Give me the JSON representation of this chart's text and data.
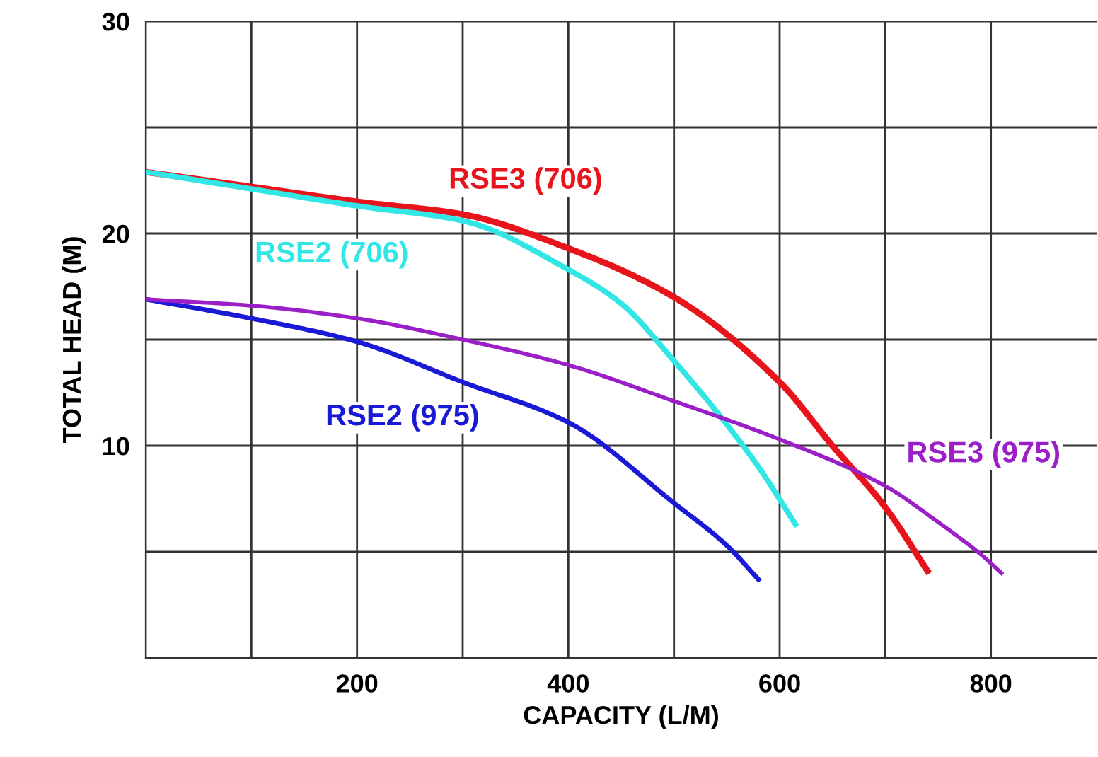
{
  "chart_data": {
    "type": "line",
    "xlabel": "CAPACITY (L/M)",
    "ylabel": "TOTAL HEAD (M)",
    "xlim": [
      0,
      900
    ],
    "ylim": [
      0,
      30
    ],
    "xticks": [
      {
        "value": 0,
        "label": null
      },
      {
        "value": 100,
        "label": null
      },
      200,
      {
        "value": 300,
        "label": null
      },
      400,
      {
        "value": 500,
        "label": null
      },
      600,
      {
        "value": 700,
        "label": null
      },
      800
    ],
    "yticks": [
      {
        "value": 0,
        "label": null
      },
      {
        "value": 5,
        "label": null
      },
      10,
      {
        "value": 15,
        "label": null
      },
      20,
      {
        "value": 25,
        "label": null
      },
      30
    ],
    "grid": true,
    "marker": "none",
    "line_style": "solid",
    "series": [
      {
        "color": "#e8141b",
        "x": [
          0,
          100,
          200,
          300,
          400,
          500,
          600,
          650,
          700,
          740
        ],
        "values": [
          22.9,
          22.2,
          21.5,
          20.9,
          19.3,
          17,
          13,
          10,
          7.1,
          4.1
        ]
      },
      {
        "color": "#33e6e6",
        "x": [
          0,
          100,
          200,
          300,
          400,
          450,
          500,
          550,
          580,
          615
        ],
        "values": [
          22.9,
          22.1,
          21.3,
          20.6,
          18.3,
          16.7,
          14,
          11,
          9,
          6.3
        ]
      },
      {
        "color": "#1a1ad6",
        "x": [
          0,
          100,
          200,
          300,
          400,
          500,
          550,
          580
        ],
        "values": [
          16.9,
          16,
          14.9,
          13,
          11.1,
          7.3,
          5.3,
          3.7
        ]
      },
      {
        "color": "#9b1fc7",
        "x": [
          0,
          100,
          200,
          300,
          400,
          500,
          600,
          700,
          750,
          790,
          810
        ],
        "values": [
          16.9,
          16.6,
          16,
          15,
          13.8,
          12.1,
          10.3,
          8.1,
          6.4,
          4.9,
          4
        ]
      }
    ],
    "annotations": [
      {
        "text": "RSE3 (706)",
        "x": 300,
        "y": 20.9
      },
      {
        "text": "RSE2 (706)",
        "x": 176,
        "y": 21.5
      },
      {
        "text": "RSE2 (975)",
        "x": 243,
        "y": 14.1
      },
      {
        "text": "RSE3 (975)",
        "x": 700,
        "y": 8.1
      }
    ]
  }
}
